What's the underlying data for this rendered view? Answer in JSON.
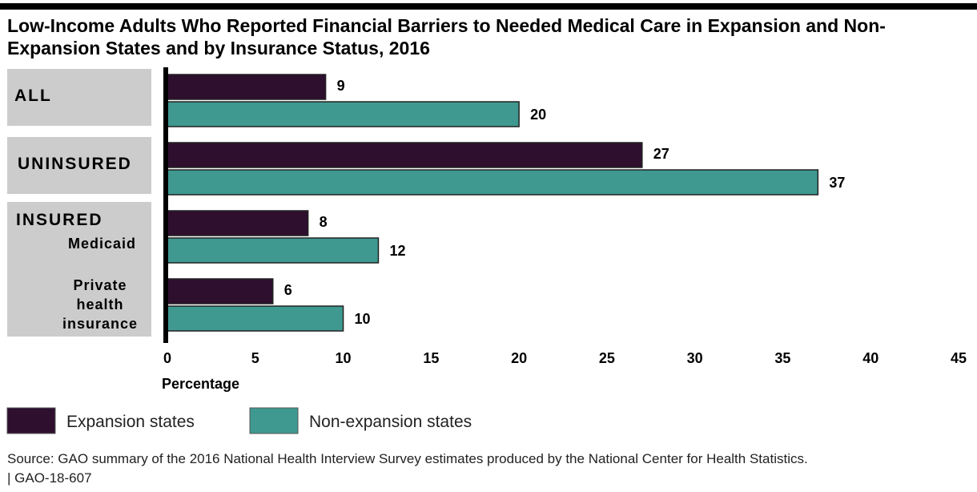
{
  "chart_data": {
    "type": "bar",
    "orientation": "horizontal",
    "title": "Low-Income Adults Who Reported Financial Barriers to Needed Medical Care in Expansion and Non-Expansion States and by Insurance Status, 2016",
    "xlabel": "Percentage",
    "ylabel": "",
    "xlim": [
      0,
      45
    ],
    "xticks": [
      0,
      5,
      10,
      15,
      20,
      25,
      30,
      35,
      40,
      45
    ],
    "grid": false,
    "legend_position": "bottom-left",
    "groups": [
      {
        "label": "ALL",
        "sublabel": ""
      },
      {
        "label": "UNINSURED",
        "sublabel": ""
      },
      {
        "label": "INSURED",
        "sublabel": "Medicaid"
      },
      {
        "label": "",
        "sublabel": "Private\nhealth\ninsurance"
      }
    ],
    "categories": [
      "ALL",
      "UNINSURED",
      "INSURED: Medicaid",
      "INSURED: Private health insurance"
    ],
    "series": [
      {
        "name": "Expansion states",
        "color": "#2e0f2e",
        "values": [
          9,
          27,
          8,
          6
        ]
      },
      {
        "name": "Non-expansion states",
        "color": "#3f9990",
        "values": [
          20,
          37,
          12,
          10
        ]
      }
    ],
    "label_box_color": "#cccccc"
  },
  "source": "Source: GAO summary of the 2016 National Health Interview Survey estimates produced by the National Center for Health Statistics.",
  "report_id": "| GAO-18-607"
}
